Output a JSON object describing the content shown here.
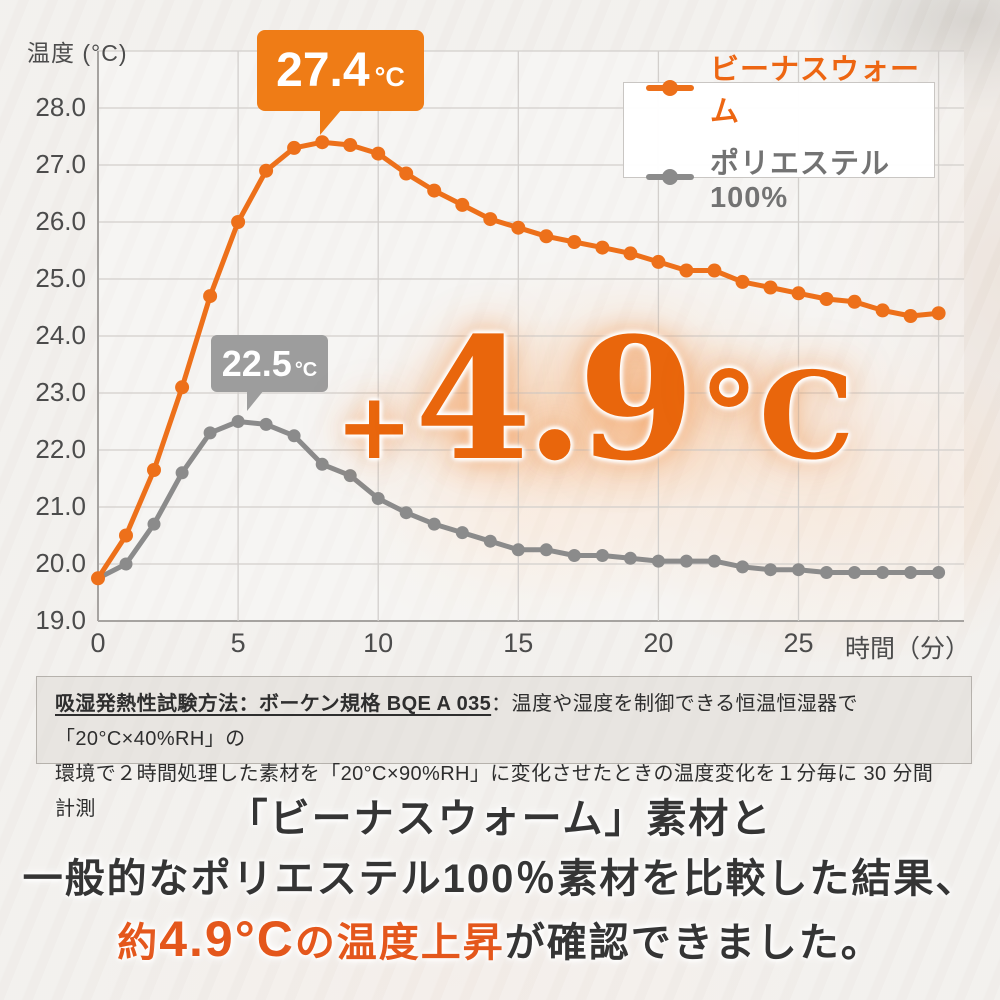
{
  "chart_data": {
    "type": "line",
    "title": "",
    "ylabel": "温度 (°C)",
    "xlabel": "時間（分）",
    "x": [
      0,
      1,
      2,
      3,
      4,
      5,
      6,
      7,
      8,
      9,
      10,
      11,
      12,
      13,
      14,
      15,
      16,
      17,
      18,
      19,
      20,
      21,
      22,
      23,
      24,
      25,
      26,
      27,
      28,
      29,
      30
    ],
    "x_ticks": [
      0,
      5,
      10,
      15,
      20,
      25
    ],
    "y_ticks": [
      19,
      20,
      21,
      22,
      23,
      24,
      25,
      26,
      27,
      28
    ],
    "xlim": [
      0,
      30
    ],
    "ylim": [
      19,
      29
    ],
    "grid": true,
    "legend_position": "top-right",
    "series": [
      {
        "name": "ビーナスウォーム",
        "color": "#ed701a",
        "peak": {
          "x": 8,
          "y": 27.4,
          "label": "27.4°C"
        },
        "values": [
          19.75,
          20.5,
          21.65,
          23.1,
          24.7,
          26,
          26.9,
          27.3,
          27.4,
          27.35,
          27.2,
          26.85,
          26.55,
          26.3,
          26.05,
          25.9,
          25.75,
          25.65,
          25.55,
          25.45,
          25.3,
          25.15,
          25.15,
          24.95,
          24.85,
          24.75,
          24.65,
          24.6,
          24.45,
          24.35,
          24.4
        ]
      },
      {
        "name": "ポリエステル 100%",
        "color": "#8b8b8b",
        "peak": {
          "x": 5,
          "y": 22.5,
          "label": "22.5°C"
        },
        "values": [
          19.75,
          20,
          20.7,
          21.6,
          22.3,
          22.5,
          22.45,
          22.25,
          21.75,
          21.55,
          21.15,
          20.9,
          20.7,
          20.55,
          20.4,
          20.25,
          20.25,
          20.15,
          20.15,
          20.1,
          20.05,
          20.05,
          20.05,
          19.95,
          19.9,
          19.9,
          19.85,
          19.85,
          19.85,
          19.85,
          19.85
        ]
      }
    ]
  },
  "callouts": {
    "venus_warm": {
      "value": "27.4",
      "unit": "°C"
    },
    "polyester": {
      "value": "22.5",
      "unit": "°C"
    }
  },
  "highlight": {
    "plus": "+",
    "value": "4.9",
    "unit": "°C"
  },
  "method_box": {
    "lead": "吸湿発熱性試験方法：ボーケン規格 BQE A 035",
    "line1_rest": "：温度や湿度を制御できる恒温恒湿器で「20°C×40%RH」の",
    "line2": "環境で２時間処理した素材を「20°C×90%RH」に変化させたときの温度変化を１分毎に 30 分間計測"
  },
  "caption": {
    "line1": "「ビーナスウォーム」素材と",
    "line2": "一般的なポリエステル100％素材を比較した結果、",
    "line3_prefix": "約",
    "line3_big": "4.9°C",
    "line3_highlight_rest": "の温度上昇",
    "line3_rest": "が確認できました。"
  },
  "colors": {
    "accent_orange": "#ed701a",
    "line_gray": "#8b8b8b"
  }
}
